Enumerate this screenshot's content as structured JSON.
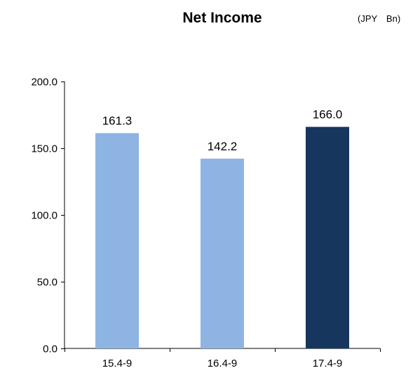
{
  "chart_data": {
    "type": "bar",
    "title": "Net Income",
    "unit": "(JPY　Bn)",
    "xlabel": "",
    "ylabel": "",
    "categories": [
      "15.4-9",
      "16.4-9",
      "17.4-9"
    ],
    "values": [
      161.3,
      142.2,
      166.0
    ],
    "data_labels": [
      "161.3",
      "142.2",
      "166.0"
    ],
    "bar_colors": [
      "#8eb4e3",
      "#8eb4e3",
      "#17365d"
    ],
    "ylim": [
      0,
      200
    ],
    "yticks": [
      0,
      50,
      100,
      150,
      200
    ],
    "ytick_labels": [
      "0.0",
      "50.0",
      "100.0",
      "150.0",
      "200.0"
    ],
    "grid": false,
    "legend": "none"
  }
}
